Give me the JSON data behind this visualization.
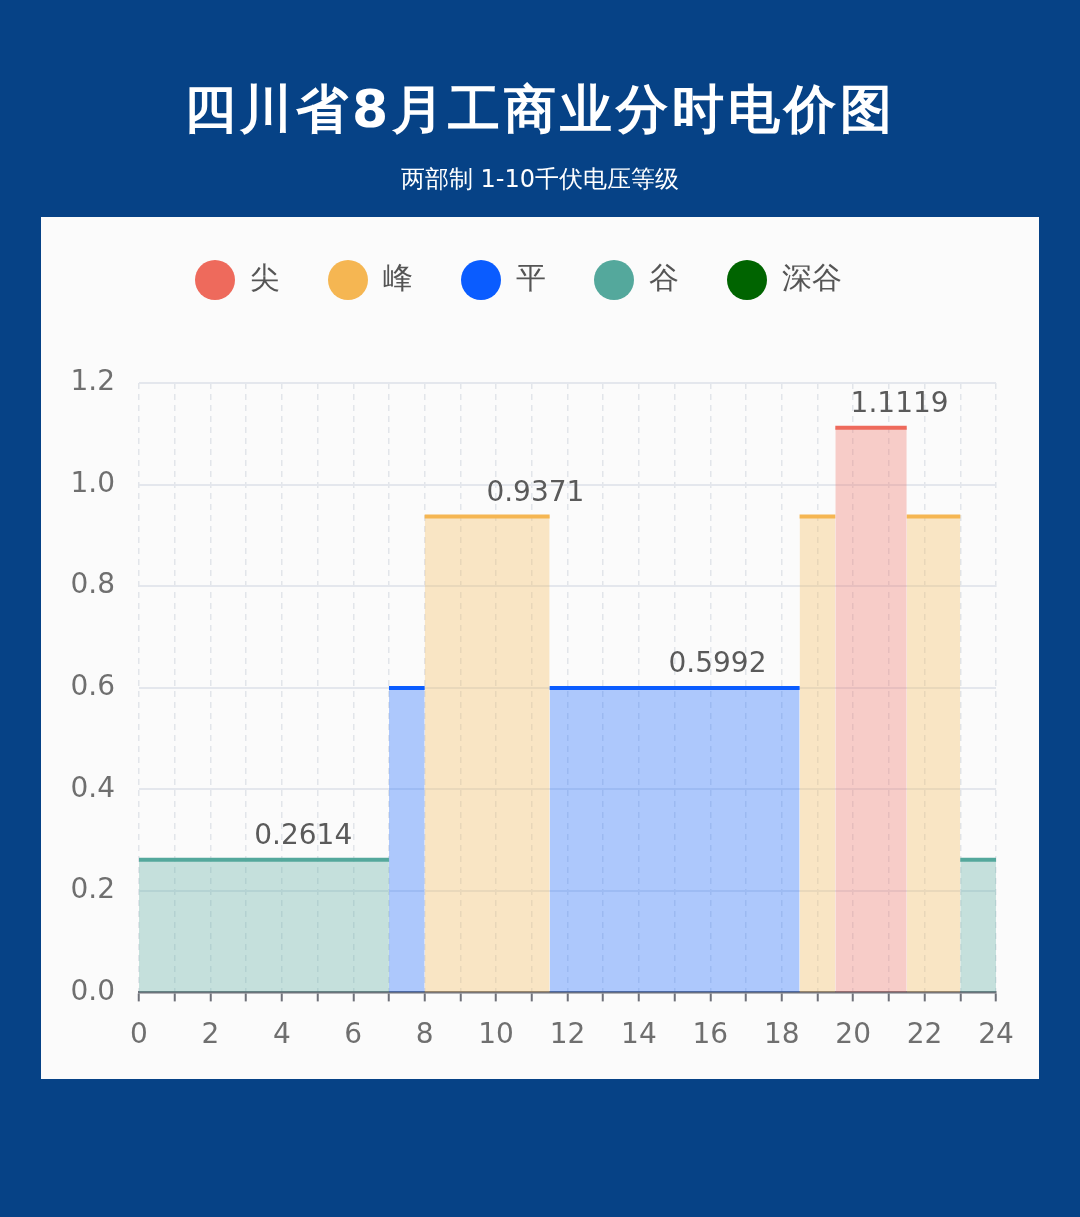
{
  "chart_data": {
    "type": "area",
    "title": "四川省8月工商业分时电价图",
    "subtitle": "两部制 1-10千伏电压等级",
    "series": [
      {
        "name": "尖",
        "color": "#ee6a5c",
        "x": [
          19.5,
          21.5
        ],
        "values": [
          1.1119,
          1.1119
        ]
      },
      {
        "name": "峰",
        "color": "#f5b652",
        "x": [
          8,
          11.5
        ],
        "values": [
          0.9371,
          0.9371
        ]
      },
      {
        "name": "平",
        "color": "#0a5cff",
        "x": [
          7,
          8
        ],
        "values": [
          0.5992,
          0.5992
        ]
      },
      {
        "name": "谷",
        "color": "#54a89c",
        "x": [
          0,
          7
        ],
        "values": [
          0.2614,
          0.2614
        ]
      },
      {
        "name": "深谷",
        "color": "#006400"
      },
      {
        "color": "#f5b652",
        "x": [
          18.5,
          19.5
        ],
        "values": [
          0.9371,
          0.9371
        ]
      },
      {
        "color": "#f5b652",
        "x": [
          21.5,
          23
        ],
        "values": [
          0.9371,
          0.9371
        ]
      },
      {
        "color": "#0a5cff",
        "x": [
          11.5,
          18.5
        ],
        "values": [
          0.5992,
          0.5992
        ]
      },
      {
        "color": "#54a89c",
        "x": [
          23,
          24
        ],
        "values": [
          0.2614,
          0.2614
        ]
      }
    ],
    "xlim": [
      0,
      24
    ],
    "xticks": [
      0,
      {
        "value": 1,
        "label": null
      },
      2,
      {
        "value": 3,
        "label": null
      },
      4,
      {
        "value": 5,
        "label": null
      },
      6,
      {
        "value": 7,
        "label": null
      },
      8,
      {
        "value": 9,
        "label": null
      },
      10,
      {
        "value": 11,
        "label": null
      },
      12,
      {
        "value": 13,
        "label": null
      },
      14,
      {
        "value": 15,
        "label": null
      },
      16,
      {
        "value": 17,
        "label": null
      },
      18,
      {
        "value": 19,
        "label": null
      },
      20,
      {
        "value": 21,
        "label": null
      },
      22,
      {
        "value": 23,
        "label": null
      },
      24
    ],
    "ylim": [
      0,
      1.2
    ],
    "yticks": [
      {
        "value": 0,
        "label": "0.0"
      },
      0.2,
      0.4,
      0.6,
      0.8,
      {
        "value": 1,
        "label": "1.0"
      },
      1.2
    ],
    "annotations": [
      {
        "text": "0.2614",
        "x": 4.6,
        "y": 0.2614
      },
      {
        "text": "0.9371",
        "x": 11.1,
        "y": 0.9371
      },
      {
        "text": "0.5992",
        "x": 16.2,
        "y": 0.5992
      },
      {
        "text": "1.1119",
        "x": 21.3,
        "y": 1.1119
      }
    ],
    "grid": true,
    "legend": "top"
  }
}
